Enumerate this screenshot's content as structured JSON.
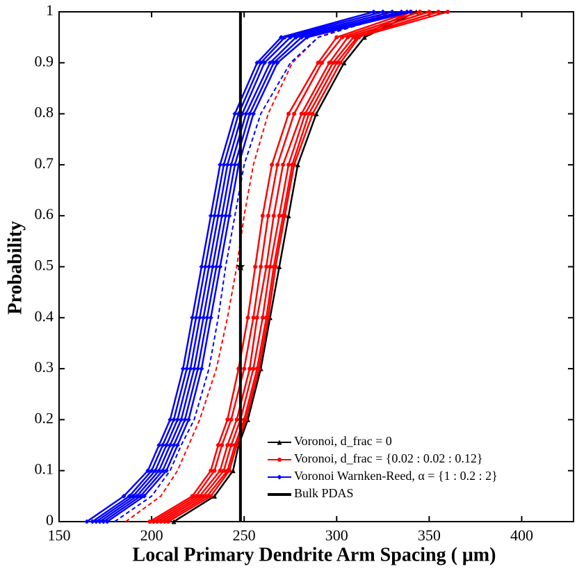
{
  "chart_data": {
    "type": "cdf",
    "xlabel": "Local Primary Dendrite Arm Spacing ( μm)",
    "ylabel": "Probability",
    "xlim": [
      150,
      428
    ],
    "ylim": [
      0,
      1
    ],
    "xticks": [
      150,
      200,
      250,
      300,
      350,
      400
    ],
    "yticks": [
      0,
      0.1,
      0.2,
      0.3,
      0.4,
      0.5,
      0.6,
      0.7,
      0.8,
      0.9,
      1
    ],
    "probabilities": [
      0,
      0.05,
      0.1,
      0.15,
      0.2,
      0.3,
      0.4,
      0.5,
      0.6,
      0.7,
      0.8,
      0.9,
      0.95,
      1
    ],
    "legend": "lower right",
    "series": [
      {
        "name": "Voronoi, d_frac = 0",
        "color": "#000000",
        "marker": "triangle",
        "curves": [
          {
            "x": [
              212,
              234,
              244,
              247,
              252,
              259,
              264,
              269,
              274,
              279,
              289,
              304,
              315,
              343
            ]
          }
        ]
      },
      {
        "name": "Voronoi, d_frac = {0.02 : 0.02 : 0.12}",
        "color": "#ff0000",
        "marker": "circle",
        "curves": [
          {
            "x": [
              199,
              222,
              232,
              236,
              241,
              247,
              252,
              256,
              260,
              265,
              274,
              290,
              300,
              340
            ]
          },
          {
            "x": [
              201,
              224,
              234,
              238,
              243,
              250,
              255,
              259,
              263,
              268,
              277,
              292,
              303,
              345
            ]
          },
          {
            "x": [
              203,
              226,
              237,
              241,
              246,
              253,
              257,
              262,
              266,
              271,
              281,
              296,
              306,
              350
            ]
          },
          {
            "x": [
              205,
              228,
              239,
              243,
              248,
              255,
              260,
              264,
              269,
              274,
              283,
              298,
              309,
              355
            ]
          },
          {
            "x": [
              207,
              230,
              241,
              245,
              250,
              257,
              262,
              266,
              271,
              276,
              285,
              300,
              311,
              360
            ]
          },
          {
            "x": [
              209,
              232,
              242,
              246,
              251,
              258,
              263,
              267,
              272,
              277,
              287,
              302,
              312,
              340
            ]
          },
          {
            "x": [
              186,
              205,
              214,
              220,
              226,
              235,
              241,
              246,
              250,
              255,
              263,
              276,
              290,
              330
            ],
            "dashed": true
          }
        ]
      },
      {
        "name": "Voronoi Warnken-Reed, α = {1 : 0.2 : 2}",
        "color": "#0000ff",
        "marker": "diamond",
        "curves": [
          {
            "x": [
              165,
              185,
              198,
              204,
              210,
              217,
              222,
              227,
              232,
              237,
              245,
              257,
              270,
              320
            ]
          },
          {
            "x": [
              168,
              188,
              200,
              206,
              212,
              219,
              224,
              229,
              234,
              239,
              247,
              259,
              272,
              325
            ]
          },
          {
            "x": [
              170,
              190,
              202,
              208,
              214,
              221,
              226,
              231,
              236,
              241,
              249,
              261,
              275,
              330
            ]
          },
          {
            "x": [
              172,
              192,
              204,
              210,
              216,
              223,
              228,
              233,
              238,
              243,
              251,
              264,
              278,
              335
            ]
          },
          {
            "x": [
              174,
              194,
              206,
              212,
              218,
              225,
              230,
              235,
              240,
              245,
              253,
              266,
              281,
              338
            ]
          },
          {
            "x": [
              176,
              196,
              208,
              214,
              220,
              227,
              232,
              237,
              242,
              247,
              255,
              268,
              284,
              340
            ]
          },
          {
            "x": [
              180,
              200,
              210,
              216,
              223,
              231,
              236,
              240,
              245,
              250,
              259,
              275,
              290,
              335
            ],
            "dashed": true
          }
        ]
      },
      {
        "name": "Bulk PDAS",
        "color": "#000000",
        "x": 248,
        "star_y": 0.5
      }
    ]
  }
}
